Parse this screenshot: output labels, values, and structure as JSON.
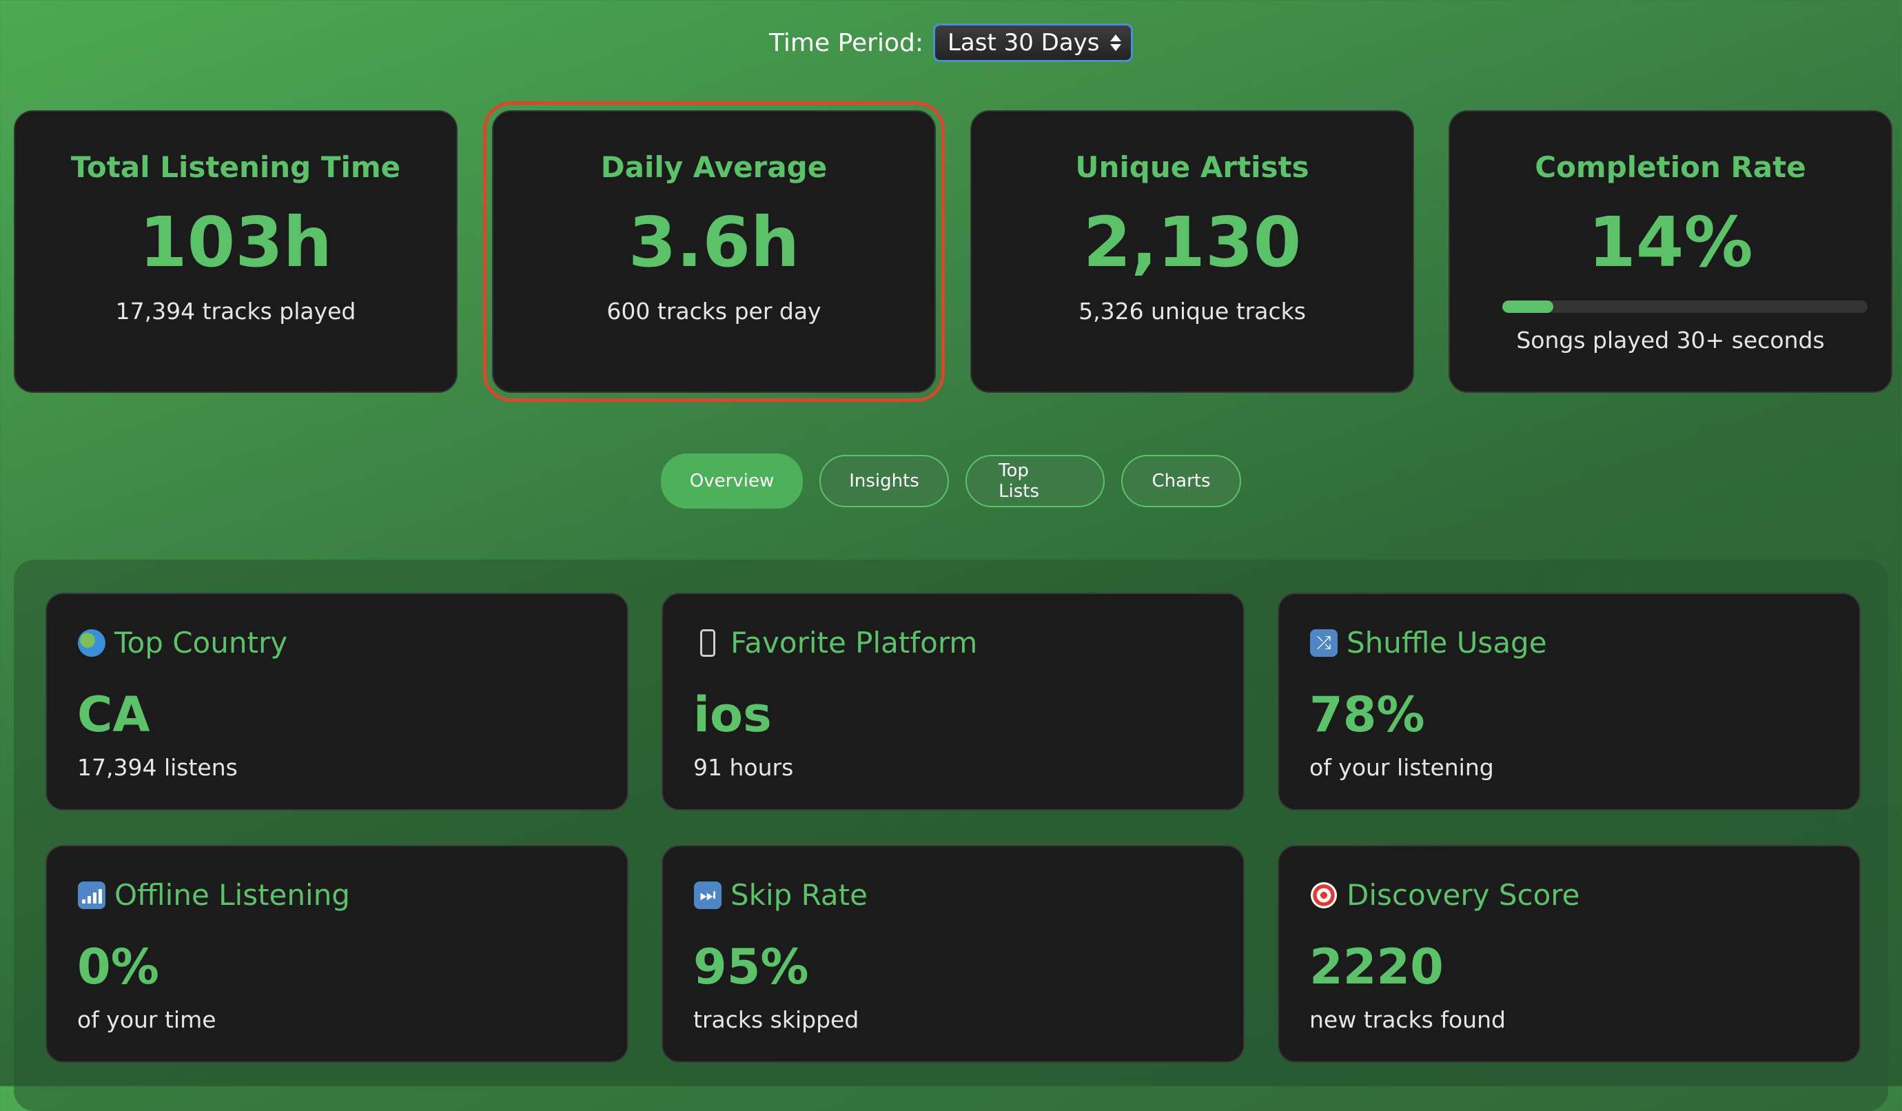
{
  "period": {
    "label": "Time Period:",
    "selected": "Last 30 Days"
  },
  "stats": [
    {
      "title": "Total Listening Time",
      "value": "103h",
      "sub": "17,394 tracks played"
    },
    {
      "title": "Daily Average",
      "value": "3.6h",
      "sub": "600 tracks per day"
    },
    {
      "title": "Unique Artists",
      "value": "2,130",
      "sub": "5,326 unique tracks"
    },
    {
      "title": "Completion Rate",
      "value": "14%",
      "sub": "Songs played 30+ seconds",
      "progress": 0.14
    }
  ],
  "tabs": [
    {
      "label": "Overview",
      "active": true
    },
    {
      "label": "Insights",
      "active": false
    },
    {
      "label": "Top Lists",
      "active": false
    },
    {
      "label": "Charts",
      "active": false
    }
  ],
  "overview": [
    {
      "icon": "globe-icon",
      "title": "Top Country",
      "value": "CA",
      "sub": "17,394 listens"
    },
    {
      "icon": "mobile-phone-icon",
      "title": "Favorite Platform",
      "value": "ios",
      "sub": "91 hours"
    },
    {
      "icon": "shuffle-icon",
      "title": "Shuffle Usage",
      "value": "78%",
      "sub": "of your listening"
    },
    {
      "icon": "signal-bars-icon",
      "title": "Offline Listening",
      "value": "0%",
      "sub": "of your time"
    },
    {
      "icon": "skip-forward-icon",
      "title": "Skip Rate",
      "value": "95%",
      "sub": "tracks skipped"
    },
    {
      "icon": "target-icon",
      "title": "Discovery Score",
      "value": "2220",
      "sub": "new tracks found"
    }
  ],
  "colors": {
    "accent": "#5bc26a",
    "card": "#1b1b1b",
    "focus_outline": "#d9472f"
  }
}
